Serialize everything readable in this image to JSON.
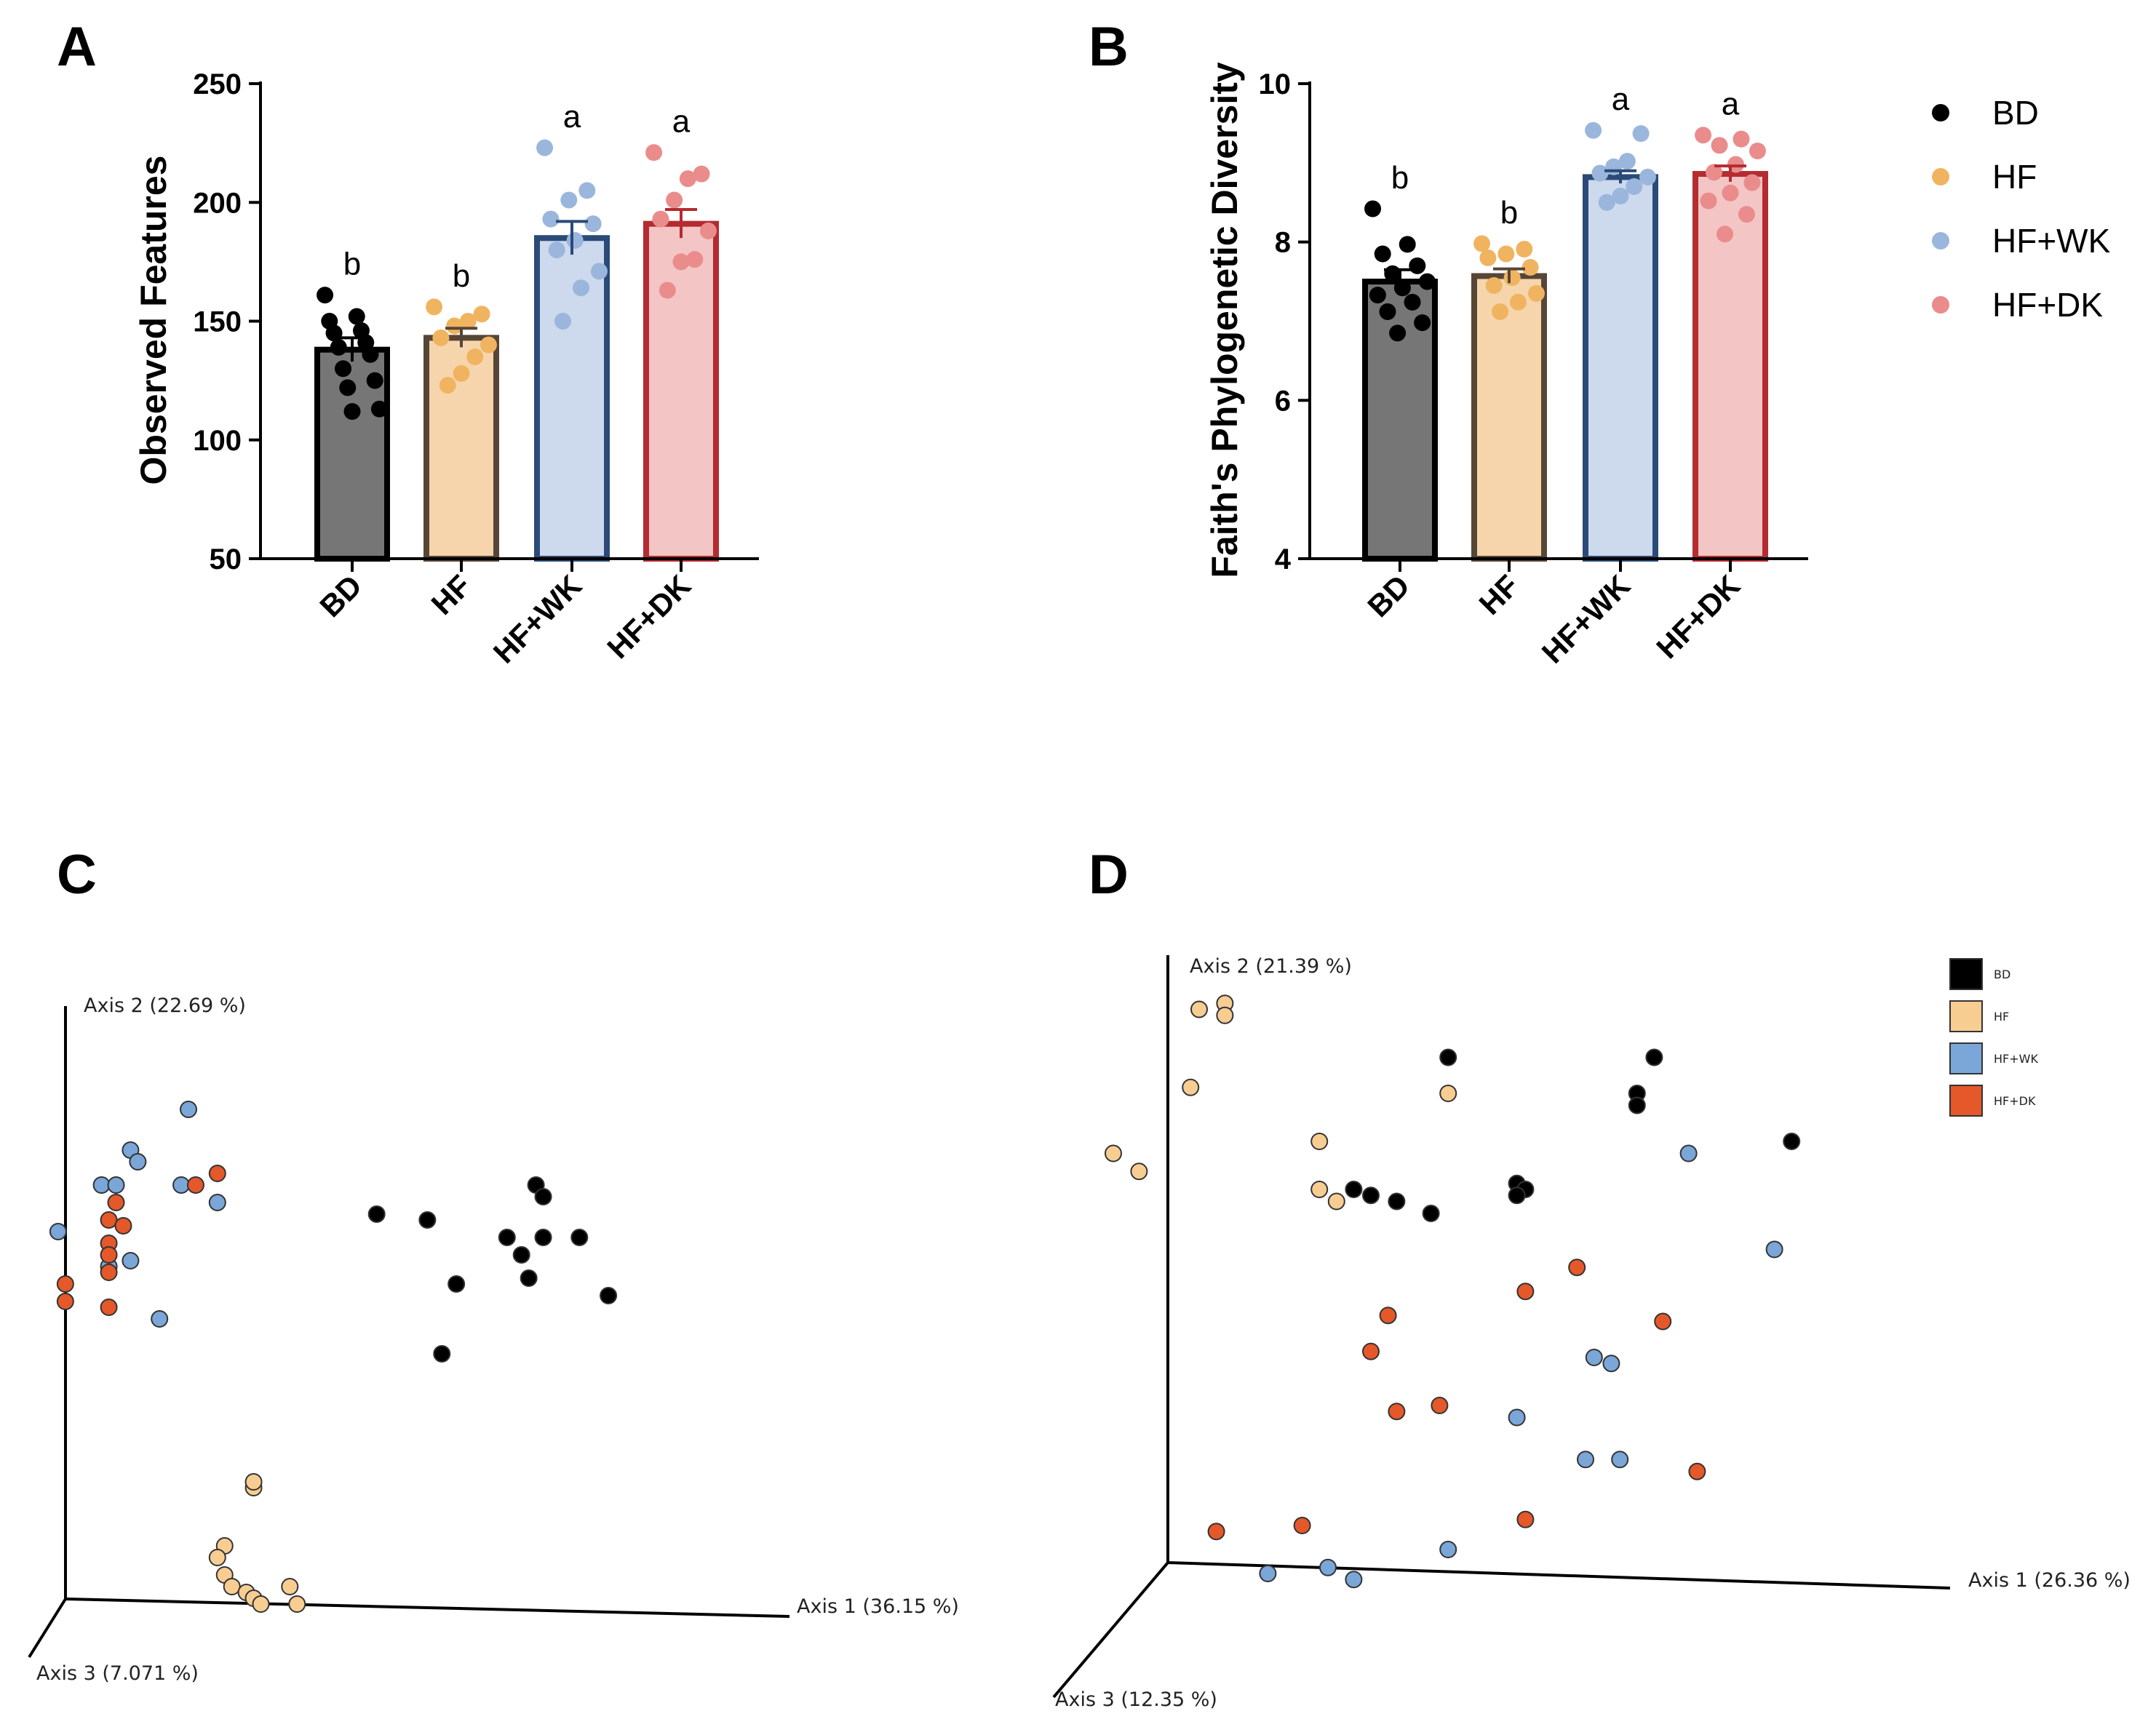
{
  "panels": {
    "A": "A",
    "B": "B",
    "C": "C",
    "D": "D"
  },
  "colors": {
    "BD": "#000000",
    "HF": "#f0b461",
    "HF+WK": "#9bb6dc",
    "HF+DK": "#ea8c8c",
    "pcoa_HF": "#f7cd92",
    "pcoa_HF+WK": "#7aa6d8",
    "pcoa_HF+DK": "#e4582a"
  },
  "legend": {
    "items": [
      "BD",
      "HF",
      "HF+WK",
      "HF+DK"
    ]
  },
  "chart_data": [
    {
      "id": "A",
      "type": "bar",
      "ylabel": "Observed Features",
      "ylim": [
        50,
        250
      ],
      "yticks": [
        50,
        100,
        150,
        200,
        250
      ],
      "categories": [
        "BD",
        "HF",
        "HF+WK",
        "HF+DK"
      ],
      "means": [
        138,
        143,
        185,
        191
      ],
      "sem": [
        5,
        4,
        7,
        6
      ],
      "significance": [
        "b",
        "b",
        "a",
        "a"
      ],
      "points": [
        [
          161,
          152,
          150,
          146,
          145,
          141,
          139,
          136,
          130,
          125,
          122,
          113,
          112
        ],
        [
          156,
          153,
          150,
          148,
          143,
          140,
          135,
          128,
          123
        ],
        [
          223,
          205,
          201,
          193,
          191,
          184,
          180,
          171,
          164,
          150
        ],
        [
          221,
          212,
          210,
          201,
          193,
          188,
          176,
          175,
          163
        ]
      ]
    },
    {
      "id": "B",
      "type": "bar",
      "ylabel": "Faith's Phylogenetic Diversity",
      "ylim": [
        4,
        10
      ],
      "yticks": [
        4,
        6,
        8,
        10
      ],
      "categories": [
        "BD",
        "HF",
        "HF+WK",
        "HF+DK"
      ],
      "means": [
        7.5,
        7.57,
        8.82,
        8.86
      ],
      "sem": [
        0.15,
        0.09,
        0.08,
        0.1
      ],
      "significance": [
        "b",
        "b",
        "a",
        "a"
      ],
      "points": [
        [
          8.42,
          7.97,
          7.85,
          7.7,
          7.6,
          7.5,
          7.42,
          7.33,
          7.24,
          7.12,
          6.98,
          6.85
        ],
        [
          7.98,
          7.91,
          7.85,
          7.8,
          7.68,
          7.55,
          7.45,
          7.35,
          7.24,
          7.12
        ],
        [
          9.41,
          9.37,
          9.02,
          8.95,
          8.87,
          8.82,
          8.7,
          8.58,
          8.5
        ],
        [
          9.35,
          9.3,
          9.22,
          9.15,
          8.98,
          8.88,
          8.75,
          8.62,
          8.52,
          8.35,
          8.1
        ]
      ]
    },
    {
      "id": "C",
      "type": "scatter",
      "projection": "3d-pcoa",
      "axis1": "Axis 1 (36.15 %)",
      "axis2": "Axis 2 (22.69 %)",
      "axis3": "Axis 3 (7.071 %)",
      "groups": [
        {
          "name": "BD",
          "points": [
            [
              0.46,
              0.67
            ],
            [
              0.53,
              0.66
            ],
            [
              0.68,
              0.72
            ],
            [
              0.69,
              0.7
            ],
            [
              0.64,
              0.63
            ],
            [
              0.69,
              0.63
            ],
            [
              0.74,
              0.63
            ],
            [
              0.66,
              0.6
            ],
            [
              0.57,
              0.55
            ],
            [
              0.67,
              0.56
            ],
            [
              0.78,
              0.53
            ],
            [
              0.55,
              0.43
            ]
          ]
        },
        {
          "name": "HF",
          "points": [
            [
              0.29,
              0.2
            ],
            [
              0.29,
              0.21
            ],
            [
              0.25,
              0.1
            ],
            [
              0.24,
              0.08
            ],
            [
              0.25,
              0.05
            ],
            [
              0.26,
              0.03
            ],
            [
              0.28,
              0.02
            ],
            [
              0.29,
              0.01
            ],
            [
              0.3,
              0.0
            ],
            [
              0.34,
              0.03
            ],
            [
              0.35,
              0.0
            ]
          ]
        },
        {
          "name": "HF+WK",
          "points": [
            [
              0.2,
              0.85
            ],
            [
              0.12,
              0.78
            ],
            [
              0.13,
              0.76
            ],
            [
              0.08,
              0.72
            ],
            [
              0.1,
              0.72
            ],
            [
              0.19,
              0.72
            ],
            [
              0.24,
              0.69
            ],
            [
              0.02,
              0.64
            ],
            [
              0.12,
              0.59
            ],
            [
              0.09,
              0.58
            ],
            [
              0.16,
              0.49
            ]
          ]
        },
        {
          "name": "HF+DK",
          "points": [
            [
              0.24,
              0.74
            ],
            [
              0.21,
              0.72
            ],
            [
              0.1,
              0.69
            ],
            [
              0.09,
              0.66
            ],
            [
              0.11,
              0.65
            ],
            [
              0.09,
              0.62
            ],
            [
              0.09,
              0.6
            ],
            [
              0.09,
              0.57
            ],
            [
              0.03,
              0.55
            ],
            [
              0.03,
              0.52
            ],
            [
              0.09,
              0.51
            ]
          ]
        }
      ]
    },
    {
      "id": "D",
      "type": "scatter",
      "projection": "3d-pcoa",
      "axis1": "Axis 1 (26.36 %)",
      "axis2": "Axis 2 (21.39 %)",
      "axis3": "Axis 3 (12.35 %)",
      "legend": [
        "BD",
        "HF",
        "HF+WK",
        "HF+DK"
      ],
      "groups": [
        {
          "name": "BD",
          "points": [
            [
              0.39,
              0.82
            ],
            [
              0.63,
              0.82
            ],
            [
              0.61,
              0.76
            ],
            [
              0.61,
              0.74
            ],
            [
              0.79,
              0.68
            ],
            [
              0.28,
              0.6
            ],
            [
              0.3,
              0.59
            ],
            [
              0.33,
              0.58
            ],
            [
              0.37,
              0.56
            ],
            [
              0.47,
              0.61
            ],
            [
              0.48,
              0.6
            ],
            [
              0.47,
              0.59
            ]
          ]
        },
        {
          "name": "HF",
          "points": [
            [
              0.1,
              0.9
            ],
            [
              0.13,
              0.91
            ],
            [
              0.13,
              0.89
            ],
            [
              0.09,
              0.77
            ],
            [
              0.39,
              0.76
            ],
            [
              0.24,
              0.68
            ],
            [
              0.24,
              0.6
            ],
            [
              0.26,
              0.58
            ],
            [
              0.0,
              0.66
            ],
            [
              0.03,
              0.63
            ]
          ]
        },
        {
          "name": "HF+WK",
          "points": [
            [
              0.67,
              0.66
            ],
            [
              0.77,
              0.5
            ],
            [
              0.56,
              0.32
            ],
            [
              0.58,
              0.31
            ],
            [
              0.47,
              0.22
            ],
            [
              0.55,
              0.15
            ],
            [
              0.59,
              0.15
            ],
            [
              0.18,
              -0.04
            ],
            [
              0.25,
              -0.03
            ],
            [
              0.28,
              -0.05
            ],
            [
              0.39,
              0.0
            ]
          ]
        },
        {
          "name": "HF+DK",
          "points": [
            [
              0.54,
              0.47
            ],
            [
              0.48,
              0.43
            ],
            [
              0.64,
              0.38
            ],
            [
              0.32,
              0.39
            ],
            [
              0.3,
              0.33
            ],
            [
              0.33,
              0.23
            ],
            [
              0.38,
              0.24
            ],
            [
              0.68,
              0.13
            ],
            [
              0.48,
              0.05
            ],
            [
              0.12,
              0.03
            ],
            [
              0.22,
              0.04
            ]
          ]
        }
      ]
    }
  ]
}
